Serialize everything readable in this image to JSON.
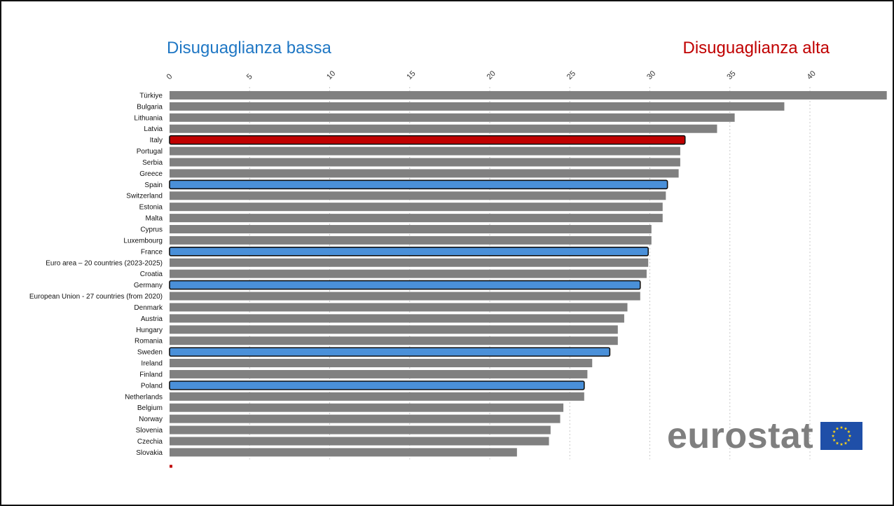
{
  "headers": {
    "low": "Disuguaglianza bassa",
    "high": "Disuguaglianza alta"
  },
  "logo": {
    "text": "eurostat",
    "flag_icon": "eu-flag-icon"
  },
  "colors": {
    "default_bar": "#808080",
    "highlight_red": "#c00000",
    "highlight_blue": "#4a90d9",
    "low_header": "#1f77c4",
    "high_header": "#c00000"
  },
  "chart_data": {
    "type": "bar",
    "orientation": "horizontal",
    "xlim": [
      0,
      45
    ],
    "xticks": [
      0,
      5,
      10,
      15,
      20,
      25,
      30,
      35,
      40
    ],
    "grid": true,
    "categories": [
      "Türkiye",
      "Bulgaria",
      "Lithuania",
      "Latvia",
      "Italy",
      "Portugal",
      "Serbia",
      "Greece",
      "Spain",
      "Switzerland",
      "Estonia",
      "Malta",
      "Cyprus",
      "Luxembourg",
      "France",
      "Euro area – 20 countries (2023-2025)",
      "Croatia",
      "Germany",
      "European Union - 27 countries (from 2020)",
      "Denmark",
      "Austria",
      "Hungary",
      "Romania",
      "Sweden",
      "Ireland",
      "Finland",
      "Poland",
      "Netherlands",
      "Belgium",
      "Norway",
      "Slovenia",
      "Czechia",
      "Slovakia"
    ],
    "values": [
      44.8,
      38.4,
      35.3,
      34.2,
      32.2,
      31.9,
      31.9,
      31.8,
      31.1,
      31.0,
      30.8,
      30.8,
      30.1,
      30.1,
      29.9,
      29.9,
      29.8,
      29.4,
      29.4,
      28.6,
      28.4,
      28.0,
      28.0,
      27.5,
      26.4,
      26.1,
      25.9,
      25.9,
      24.6,
      24.4,
      23.8,
      23.7,
      21.7
    ],
    "highlight": {
      "Italy": "red",
      "Spain": "blue",
      "France": "blue",
      "Germany": "blue",
      "Sweden": "blue",
      "Poland": "blue"
    }
  }
}
